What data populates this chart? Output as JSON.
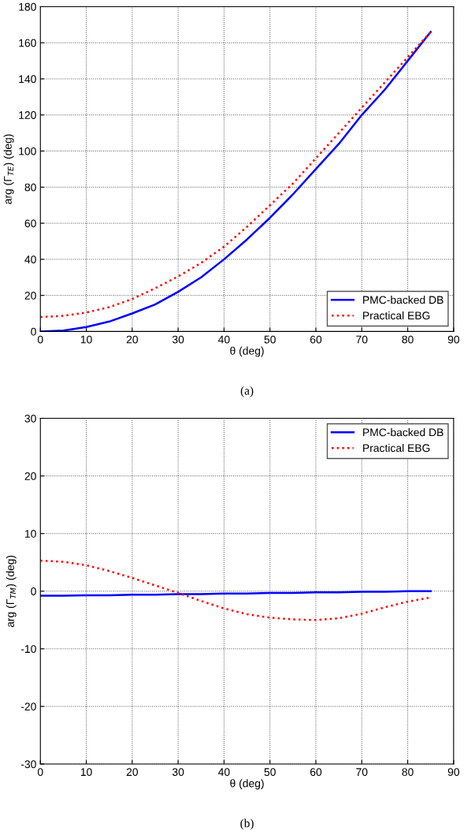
{
  "chart_data": [
    {
      "type": "line",
      "xlabel": "θ (deg)",
      "ylabel": "arg (Γ$_{TE}$) (deg)",
      "xlim": [
        0,
        90
      ],
      "xticks": [
        0,
        10,
        20,
        30,
        40,
        50,
        60,
        70,
        80,
        90
      ],
      "ylim": [
        0,
        180
      ],
      "yticks": [
        0,
        20,
        40,
        60,
        80,
        100,
        120,
        140,
        160,
        180
      ],
      "grid": true,
      "legend": "bottom right",
      "annotations": [
        "(a)"
      ],
      "x": [
        0,
        5,
        10,
        15,
        20,
        25,
        30,
        35,
        40,
        45,
        50,
        55,
        60,
        65,
        70,
        75,
        80,
        85
      ],
      "series": [
        {
          "name": "PMC-backed DB",
          "color": "#0000ff",
          "line_style": "solid",
          "values": [
            0,
            0.5,
            2.5,
            5.5,
            10,
            15,
            22,
            30,
            40,
            51,
            63,
            76,
            90,
            104,
            120,
            134,
            150,
            166
          ]
        },
        {
          "name": "Practical EBG",
          "color": "#ff0000",
          "line_style": "dotted",
          "values": [
            8,
            8.7,
            10.5,
            13.5,
            18,
            24,
            30.5,
            38,
            47,
            58,
            70,
            82,
            96,
            110,
            124,
            138,
            152,
            166
          ]
        }
      ]
    },
    {
      "type": "line",
      "xlabel": "θ (deg)",
      "ylabel": "arg (Γ$_{TM}$) (deg)",
      "xlim": [
        0,
        90
      ],
      "xticks": [
        0,
        10,
        20,
        30,
        40,
        50,
        60,
        70,
        80,
        90
      ],
      "ylim": [
        -30,
        30
      ],
      "yticks": [
        -30,
        -20,
        -10,
        0,
        10,
        20,
        30
      ],
      "grid": true,
      "legend": "top right",
      "annotations": [
        "(b)"
      ],
      "x": [
        0,
        5,
        10,
        15,
        20,
        25,
        30,
        35,
        40,
        45,
        50,
        55,
        60,
        65,
        70,
        75,
        80,
        85
      ],
      "series": [
        {
          "name": "PMC-backed DB",
          "color": "#0000ff",
          "line_style": "solid",
          "values": [
            -0.8,
            -0.8,
            -0.7,
            -0.7,
            -0.6,
            -0.6,
            -0.5,
            -0.5,
            -0.4,
            -0.4,
            -0.3,
            -0.3,
            -0.2,
            -0.2,
            -0.1,
            -0.1,
            0,
            0
          ]
        },
        {
          "name": "Practical EBG",
          "color": "#ff0000",
          "line_style": "dotted",
          "values": [
            5.3,
            5.1,
            4.5,
            3.5,
            2.3,
            1,
            -0.3,
            -1.7,
            -3,
            -4,
            -4.6,
            -4.9,
            -5,
            -4.7,
            -3.9,
            -2.8,
            -1.8,
            -1.1
          ]
        }
      ]
    }
  ]
}
